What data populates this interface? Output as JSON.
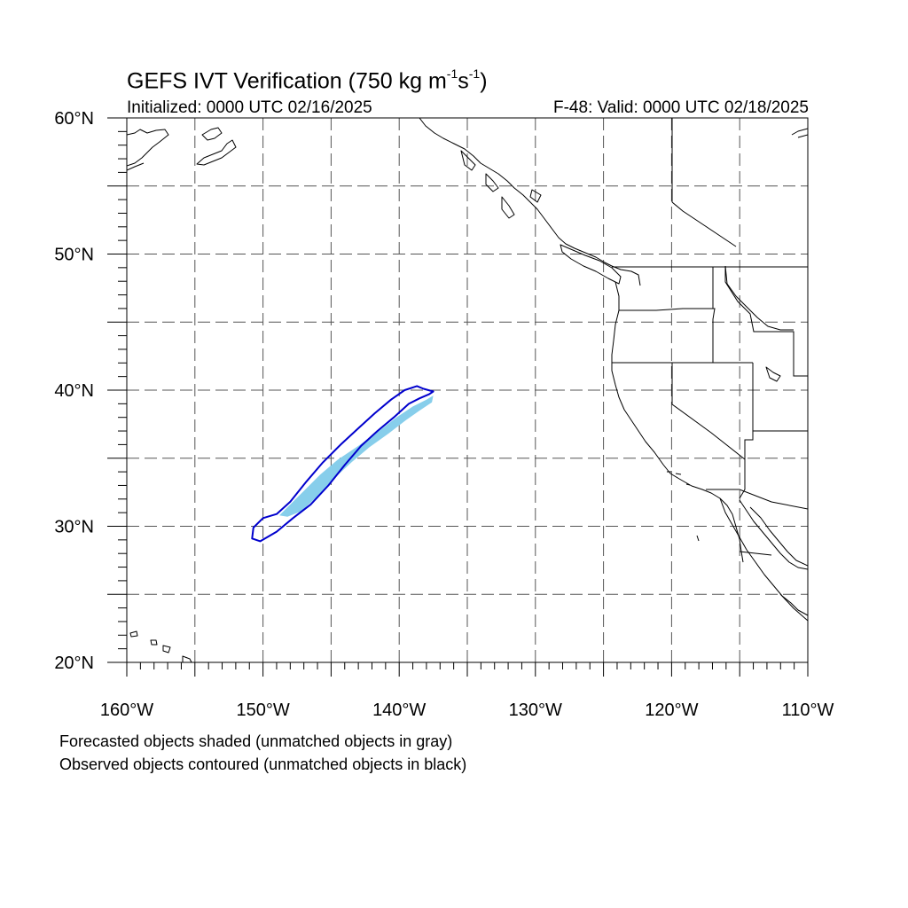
{
  "header": {
    "title_main": "GEFS IVT Verification (750 kg m",
    "title_sup1": "-1",
    "title_mid": "s",
    "title_sup2": "-1",
    "title_end": ")",
    "initialized": "Initialized: 0000 UTC 02/16/2025",
    "valid": "F-48: Valid: 0000 UTC 02/18/2025"
  },
  "map": {
    "lon_range": [
      -160,
      -110
    ],
    "lat_range": [
      20,
      60
    ],
    "x_ticks": [
      "160°W",
      "150°W",
      "140°W",
      "130°W",
      "120°W",
      "110°W"
    ],
    "y_ticks": [
      "60°N",
      "50°N",
      "40°N",
      "30°N",
      "20°N"
    ],
    "grid_spacing_deg": 5,
    "forecast_object_color": "#87ceeb",
    "observed_contour_color": "#0000cd",
    "forecast_objects": [
      {
        "name": "forecast-object-1",
        "outline": [
          [
            -148.8,
            30.8
          ],
          [
            -147.8,
            31.8
          ],
          [
            -146.8,
            32.8
          ],
          [
            -145.8,
            33.8
          ],
          [
            -144.5,
            34.9
          ],
          [
            -143.0,
            35.9
          ],
          [
            -141.5,
            37.0
          ],
          [
            -140.2,
            38.0
          ],
          [
            -139.0,
            38.8
          ],
          [
            -138.0,
            39.3
          ],
          [
            -137.5,
            39.6
          ],
          [
            -137.6,
            39.1
          ],
          [
            -138.5,
            38.5
          ],
          [
            -139.5,
            37.8
          ],
          [
            -140.8,
            36.8
          ],
          [
            -142.2,
            35.8
          ],
          [
            -143.5,
            34.7
          ],
          [
            -144.8,
            33.5
          ],
          [
            -146.0,
            32.2
          ],
          [
            -147.2,
            31.1
          ],
          [
            -148.2,
            30.7
          ]
        ]
      }
    ],
    "observed_objects": [
      {
        "name": "observed-object-1",
        "outline": [
          [
            -150.0,
            30.6
          ],
          [
            -149.0,
            30.9
          ],
          [
            -148.0,
            31.8
          ],
          [
            -146.8,
            33.3
          ],
          [
            -145.6,
            34.7
          ],
          [
            -144.3,
            36.0
          ],
          [
            -143.0,
            37.2
          ],
          [
            -141.8,
            38.3
          ],
          [
            -140.6,
            39.3
          ],
          [
            -139.6,
            40.0
          ],
          [
            -138.7,
            40.3
          ],
          [
            -138.2,
            40.1
          ],
          [
            -137.5,
            39.9
          ],
          [
            -137.8,
            39.7
          ],
          [
            -138.5,
            39.4
          ],
          [
            -139.3,
            39.0
          ],
          [
            -140.4,
            38.0
          ],
          [
            -141.6,
            37.0
          ],
          [
            -142.8,
            35.9
          ],
          [
            -144.0,
            34.5
          ],
          [
            -145.2,
            33.0
          ],
          [
            -146.5,
            31.6
          ],
          [
            -147.8,
            30.6
          ],
          [
            -149.0,
            29.6
          ],
          [
            -150.2,
            28.9
          ],
          [
            -150.8,
            29.1
          ],
          [
            -150.7,
            29.9
          ]
        ]
      }
    ]
  },
  "notes": {
    "line1": "Forecasted objects shaded (unmatched objects in gray)",
    "line2": "Observed objects contoured (unmatched objects in black)"
  }
}
